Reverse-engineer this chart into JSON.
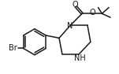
{
  "bg_color": "#ffffff",
  "line_color": "#1a1a1a",
  "line_width": 1.1,
  "font_size": 7.0,
  "label_Br": "Br",
  "label_O1": "O",
  "label_O2": "O",
  "label_NH": "NH",
  "label_N": "N"
}
